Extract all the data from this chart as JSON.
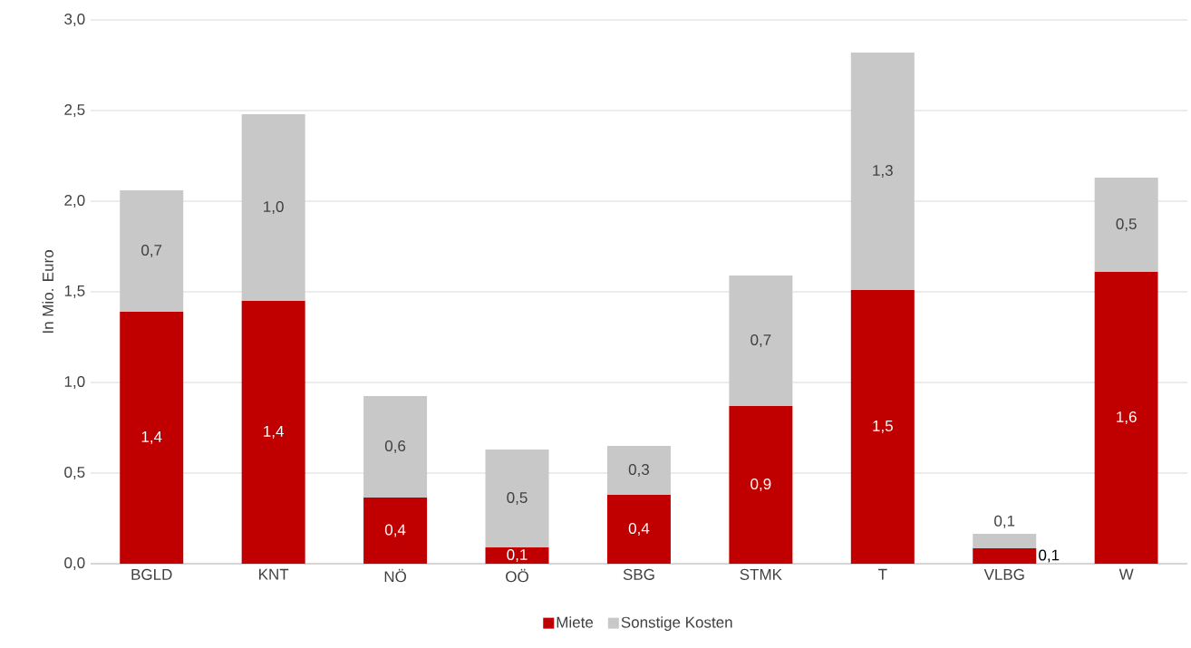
{
  "chart_data": {
    "type": "bar",
    "stacked": true,
    "ylabel": "In Mio. Euro",
    "categories": [
      "BGLD",
      "KNT",
      "NÖ",
      "OÖ",
      "SBG",
      "STMK",
      "T",
      "VLBG",
      "W"
    ],
    "series": [
      {
        "name": "Miete",
        "color": "#c00000",
        "values": [
          1.39,
          1.45,
          0.365,
          0.09,
          0.38,
          0.87,
          1.51,
          0.085,
          1.61
        ],
        "value_labels": [
          "1,4",
          "1,4",
          "0,4",
          "0,1",
          "0,4",
          "0,9",
          "1,5",
          "0,1",
          "1,6"
        ]
      },
      {
        "name": "Sonstige Kosten",
        "color": "#c8c8c8",
        "values": [
          0.67,
          1.03,
          0.56,
          0.54,
          0.27,
          0.72,
          1.31,
          0.08,
          0.52
        ],
        "value_labels": [
          "0,7",
          "1,0",
          "0,6",
          "0,5",
          "0,3",
          "0,7",
          "1,3",
          "0,1",
          "0,5"
        ]
      }
    ],
    "ylim": [
      0,
      3
    ],
    "yticks": [
      {
        "value": 0,
        "label": "0,0"
      },
      {
        "value": 0.5,
        "label": "0,5"
      },
      {
        "value": 1,
        "label": "1,0"
      },
      {
        "value": 1.5,
        "label": "1,5"
      },
      {
        "value": 2,
        "label": "2,0"
      },
      {
        "value": 2.5,
        "label": "2,5"
      },
      {
        "value": 3,
        "label": "3,0"
      }
    ],
    "grid": "y",
    "legend": "bottom"
  }
}
